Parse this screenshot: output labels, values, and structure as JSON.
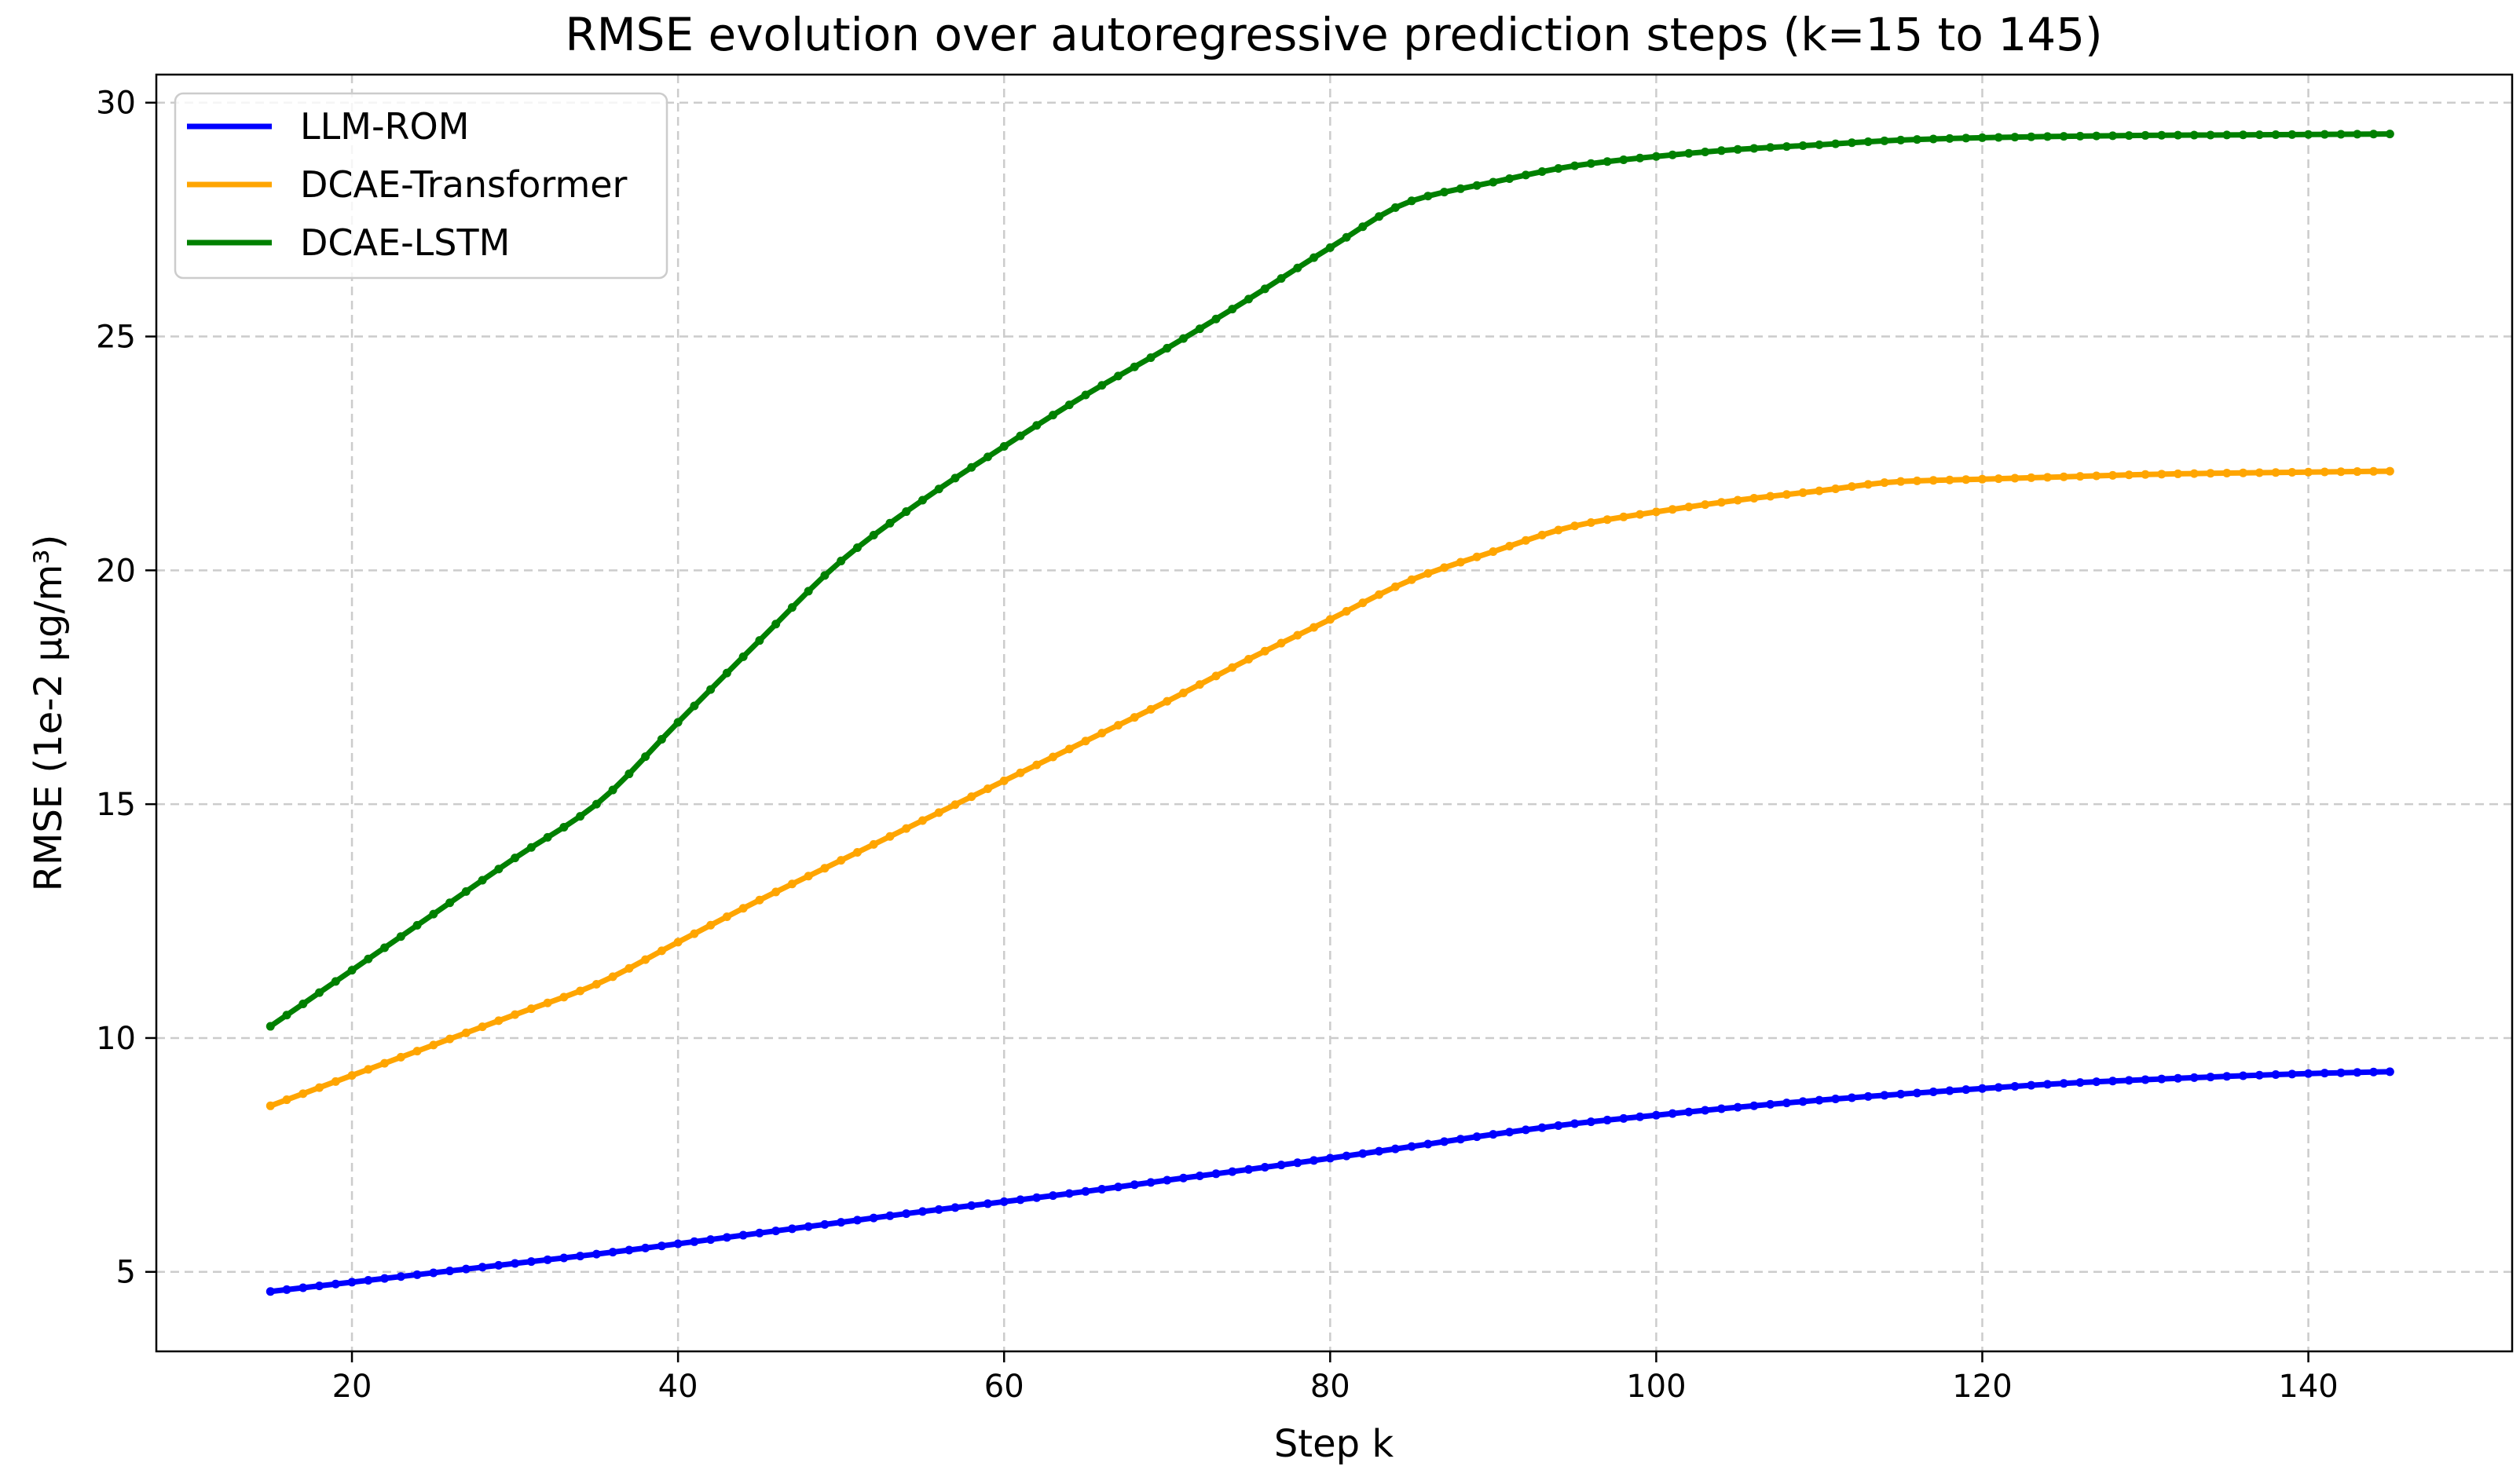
{
  "chart_data": {
    "type": "line",
    "title": "RMSE evolution over autoregressive prediction steps (k=15 to 145)",
    "xlabel": "Step k",
    "ylabel": "RMSE (1e-2 μg/m³)",
    "xlim": [
      8,
      152.5
    ],
    "ylim": [
      3.3,
      30.6
    ],
    "xticks": [
      20,
      40,
      60,
      80,
      100,
      120,
      140
    ],
    "yticks": [
      5,
      10,
      15,
      20,
      25,
      30
    ],
    "grid": true,
    "legend_position": "top-left",
    "x": [
      15,
      20,
      25,
      30,
      35,
      40,
      45,
      50,
      55,
      60,
      65,
      70,
      75,
      80,
      85,
      90,
      95,
      100,
      105,
      110,
      115,
      120,
      125,
      130,
      135,
      140,
      145
    ],
    "series": [
      {
        "name": "LLM-ROM",
        "color": "#0000ff",
        "values": [
          4.58,
          4.78,
          4.98,
          5.18,
          5.38,
          5.6,
          5.83,
          6.06,
          6.29,
          6.5,
          6.72,
          6.96,
          7.19,
          7.43,
          7.68,
          7.94,
          8.17,
          8.35,
          8.52,
          8.67,
          8.8,
          8.92,
          9.03,
          9.11,
          9.18,
          9.24,
          9.28
        ]
      },
      {
        "name": "DCAE-Transformer",
        "color": "#ffa500",
        "values": [
          8.55,
          9.2,
          9.85,
          10.5,
          11.15,
          12.05,
          12.95,
          13.8,
          14.65,
          15.5,
          16.35,
          17.2,
          18.1,
          18.95,
          19.8,
          20.4,
          20.95,
          21.25,
          21.5,
          21.7,
          21.9,
          21.95,
          22.0,
          22.05,
          22.08,
          22.1,
          22.12
        ]
      },
      {
        "name": "DCAE-LSTM",
        "color": "#008000",
        "values": [
          10.25,
          11.45,
          12.65,
          13.85,
          15.0,
          16.75,
          18.5,
          20.2,
          21.5,
          22.65,
          23.75,
          24.75,
          25.8,
          26.9,
          27.9,
          28.3,
          28.65,
          28.85,
          29.0,
          29.1,
          29.2,
          29.25,
          29.28,
          29.3,
          29.31,
          29.32,
          29.33
        ]
      }
    ]
  }
}
